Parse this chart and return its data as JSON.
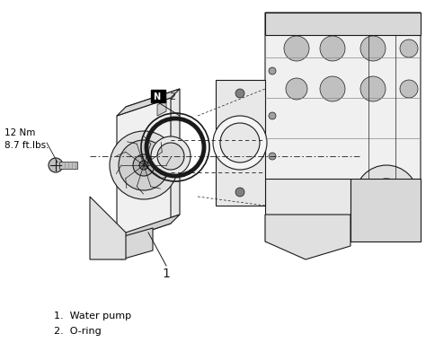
{
  "background_color": "#ffffff",
  "fig_width": 4.74,
  "fig_height": 4.02,
  "dpi": 100,
  "annotation_torque_line1": "12 Nm",
  "annotation_torque_line2": "8.7 ft.lbs.",
  "legend_1": "1.  Water pump",
  "legend_2": "2.  O-ring",
  "text_color": "#000000",
  "line_color": "#1a1a1a",
  "lw_main": 0.8,
  "lw_thin": 0.5,
  "lw_thick": 1.5
}
